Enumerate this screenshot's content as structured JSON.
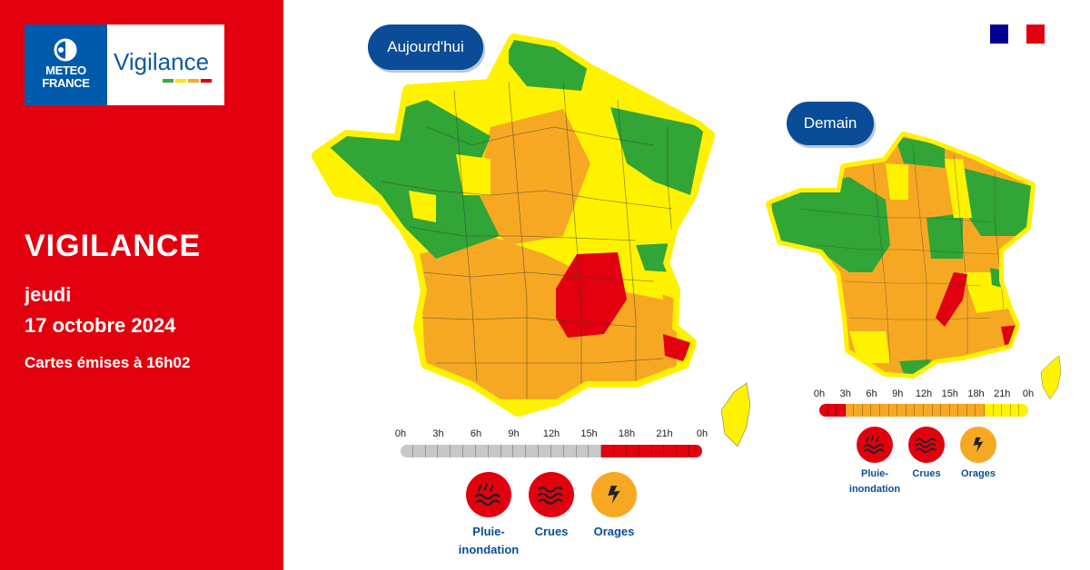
{
  "brand": {
    "logo_text_line1": "METEO",
    "logo_text_line2": "FRANCE",
    "product": "Vigilance",
    "product_bar_colors": [
      "#3aa935",
      "#ffe300",
      "#f7a823",
      "#e2000f"
    ]
  },
  "panel": {
    "title": "VIGILANCE",
    "day": "jeudi",
    "date": "17 octobre 2024",
    "issued": "Cartes émises à 16h02"
  },
  "colors": {
    "brand_red": "#e2000f",
    "navy": "#0a4c97",
    "vigilance_green": "#31a535",
    "vigilance_yellow": "#fff200",
    "vigilance_orange": "#f7a823",
    "vigilance_red": "#e2000f",
    "past_gray": "#c8c8c8"
  },
  "today": {
    "label": "Aujourd'hui",
    "timeline": {
      "ticks": [
        "0h",
        "3h",
        "6h",
        "9h",
        "12h",
        "15h",
        "18h",
        "21h",
        "0h"
      ],
      "levels": [
        "past",
        "past",
        "past",
        "past",
        "past",
        "past",
        "past",
        "past",
        "past",
        "past",
        "past",
        "past",
        "past",
        "past",
        "past",
        "past",
        "red",
        "red",
        "red",
        "red",
        "red",
        "red",
        "red",
        "red"
      ]
    },
    "risks": [
      {
        "label": "Pluie-inondation",
        "level": "red",
        "icon": "rain-flood-icon"
      },
      {
        "label": "Crues",
        "level": "red",
        "icon": "flood-waves-icon"
      },
      {
        "label": "Orages",
        "level": "orange",
        "icon": "lightning-icon"
      }
    ]
  },
  "tomorrow": {
    "label": "Demain",
    "timeline": {
      "ticks": [
        "0h",
        "3h",
        "6h",
        "9h",
        "12h",
        "15h",
        "18h",
        "21h",
        "0h"
      ],
      "levels": [
        "red",
        "red",
        "red",
        "orange",
        "orange",
        "orange",
        "orange",
        "orange",
        "orange",
        "orange",
        "orange",
        "orange",
        "orange",
        "orange",
        "orange",
        "orange",
        "orange",
        "orange",
        "orange",
        "yellow",
        "yellow",
        "yellow",
        "yellow",
        "yellow"
      ]
    },
    "risks": [
      {
        "label": "Pluie-inondation",
        "level": "red",
        "icon": "rain-flood-icon"
      },
      {
        "label": "Crues",
        "level": "red",
        "icon": "flood-waves-icon"
      },
      {
        "label": "Orages",
        "level": "orange",
        "icon": "lightning-icon"
      }
    ]
  }
}
